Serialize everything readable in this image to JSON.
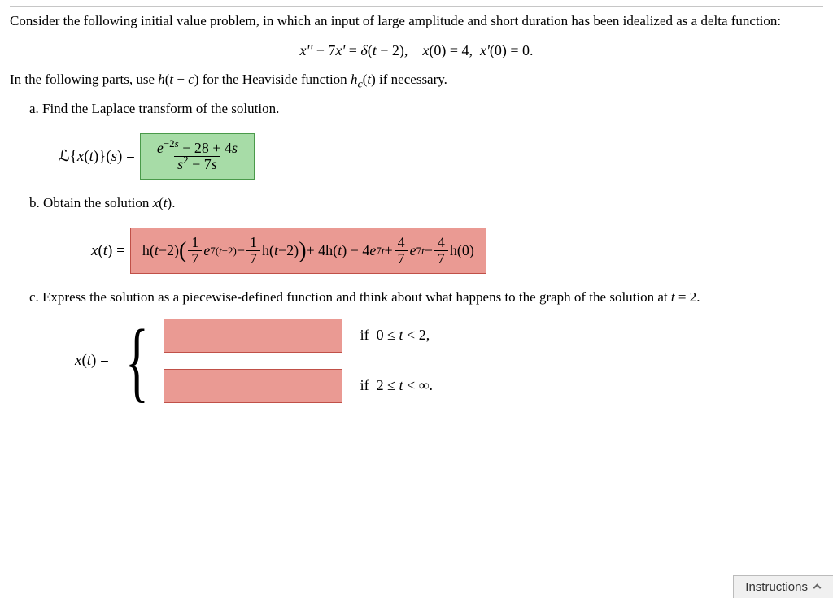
{
  "intro": "Consider the following initial value problem, in which an input of large amplitude and short duration has been idealized as a delta function:",
  "equation_html": "<i>x''</i> − 7<i>x'</i> = <i>δ</i>(<i>t</i> − 2),&nbsp;&nbsp;&nbsp;&nbsp;<i>x</i>(0) = 4,&nbsp;&nbsp;<i>x'</i>(0) = 0.",
  "heaviside_note_html": "In the following parts, use <i>h</i>(<i>t</i> − <i>c</i>) for the Heaviside function <i>h<sub>c</sub></i>(<i>t</i>) if necessary.",
  "parts": {
    "a": {
      "prompt": "a. Find the Laplace transform of the solution.",
      "lhs_html": "ℒ{<i>x</i>(<i>t</i>)}(<i>s</i>) = ",
      "answer_num_html": "<i>e</i><sup>−2<i>s</i></sup> − 28 + 4<i>s</i>",
      "answer_den_html": "<i>s</i><sup>2</sup> − 7<i>s</i>",
      "status": "correct"
    },
    "b": {
      "prompt_html": "b. Obtain the solution <i>x</i>(<i>t</i>).",
      "lhs_html": "<i>x</i>(<i>t</i>) = ",
      "answer_display": "h(t−2)( (1/7) e^{7(t−2)} − (1/7) h(t−2) ) + 4h(t) − 4e^{7t} + (4/7) e^{7t} − (4/7) h(0)",
      "status": "wrong"
    },
    "c": {
      "prompt_html": "c. Express the solution as a piecewise-defined function and think about what happens to the graph of the solution at <i>t</i> = 2.",
      "lhs_html": "<i>x</i>(<i>t</i>) = ",
      "cases": [
        {
          "cond_html": "if&nbsp; 0 ≤ <i>t</i> &lt; 2,",
          "status": "wrong",
          "value": ""
        },
        {
          "cond_html": "if&nbsp; 2 ≤ <i>t</i> &lt; ∞.",
          "status": "wrong",
          "value": ""
        }
      ]
    }
  },
  "instructions_label": "Instructions",
  "colors": {
    "correct_bg": "#a7dca7",
    "correct_border": "#4a9a4a",
    "wrong_bg": "#ea9a93",
    "wrong_border": "#c05048"
  }
}
